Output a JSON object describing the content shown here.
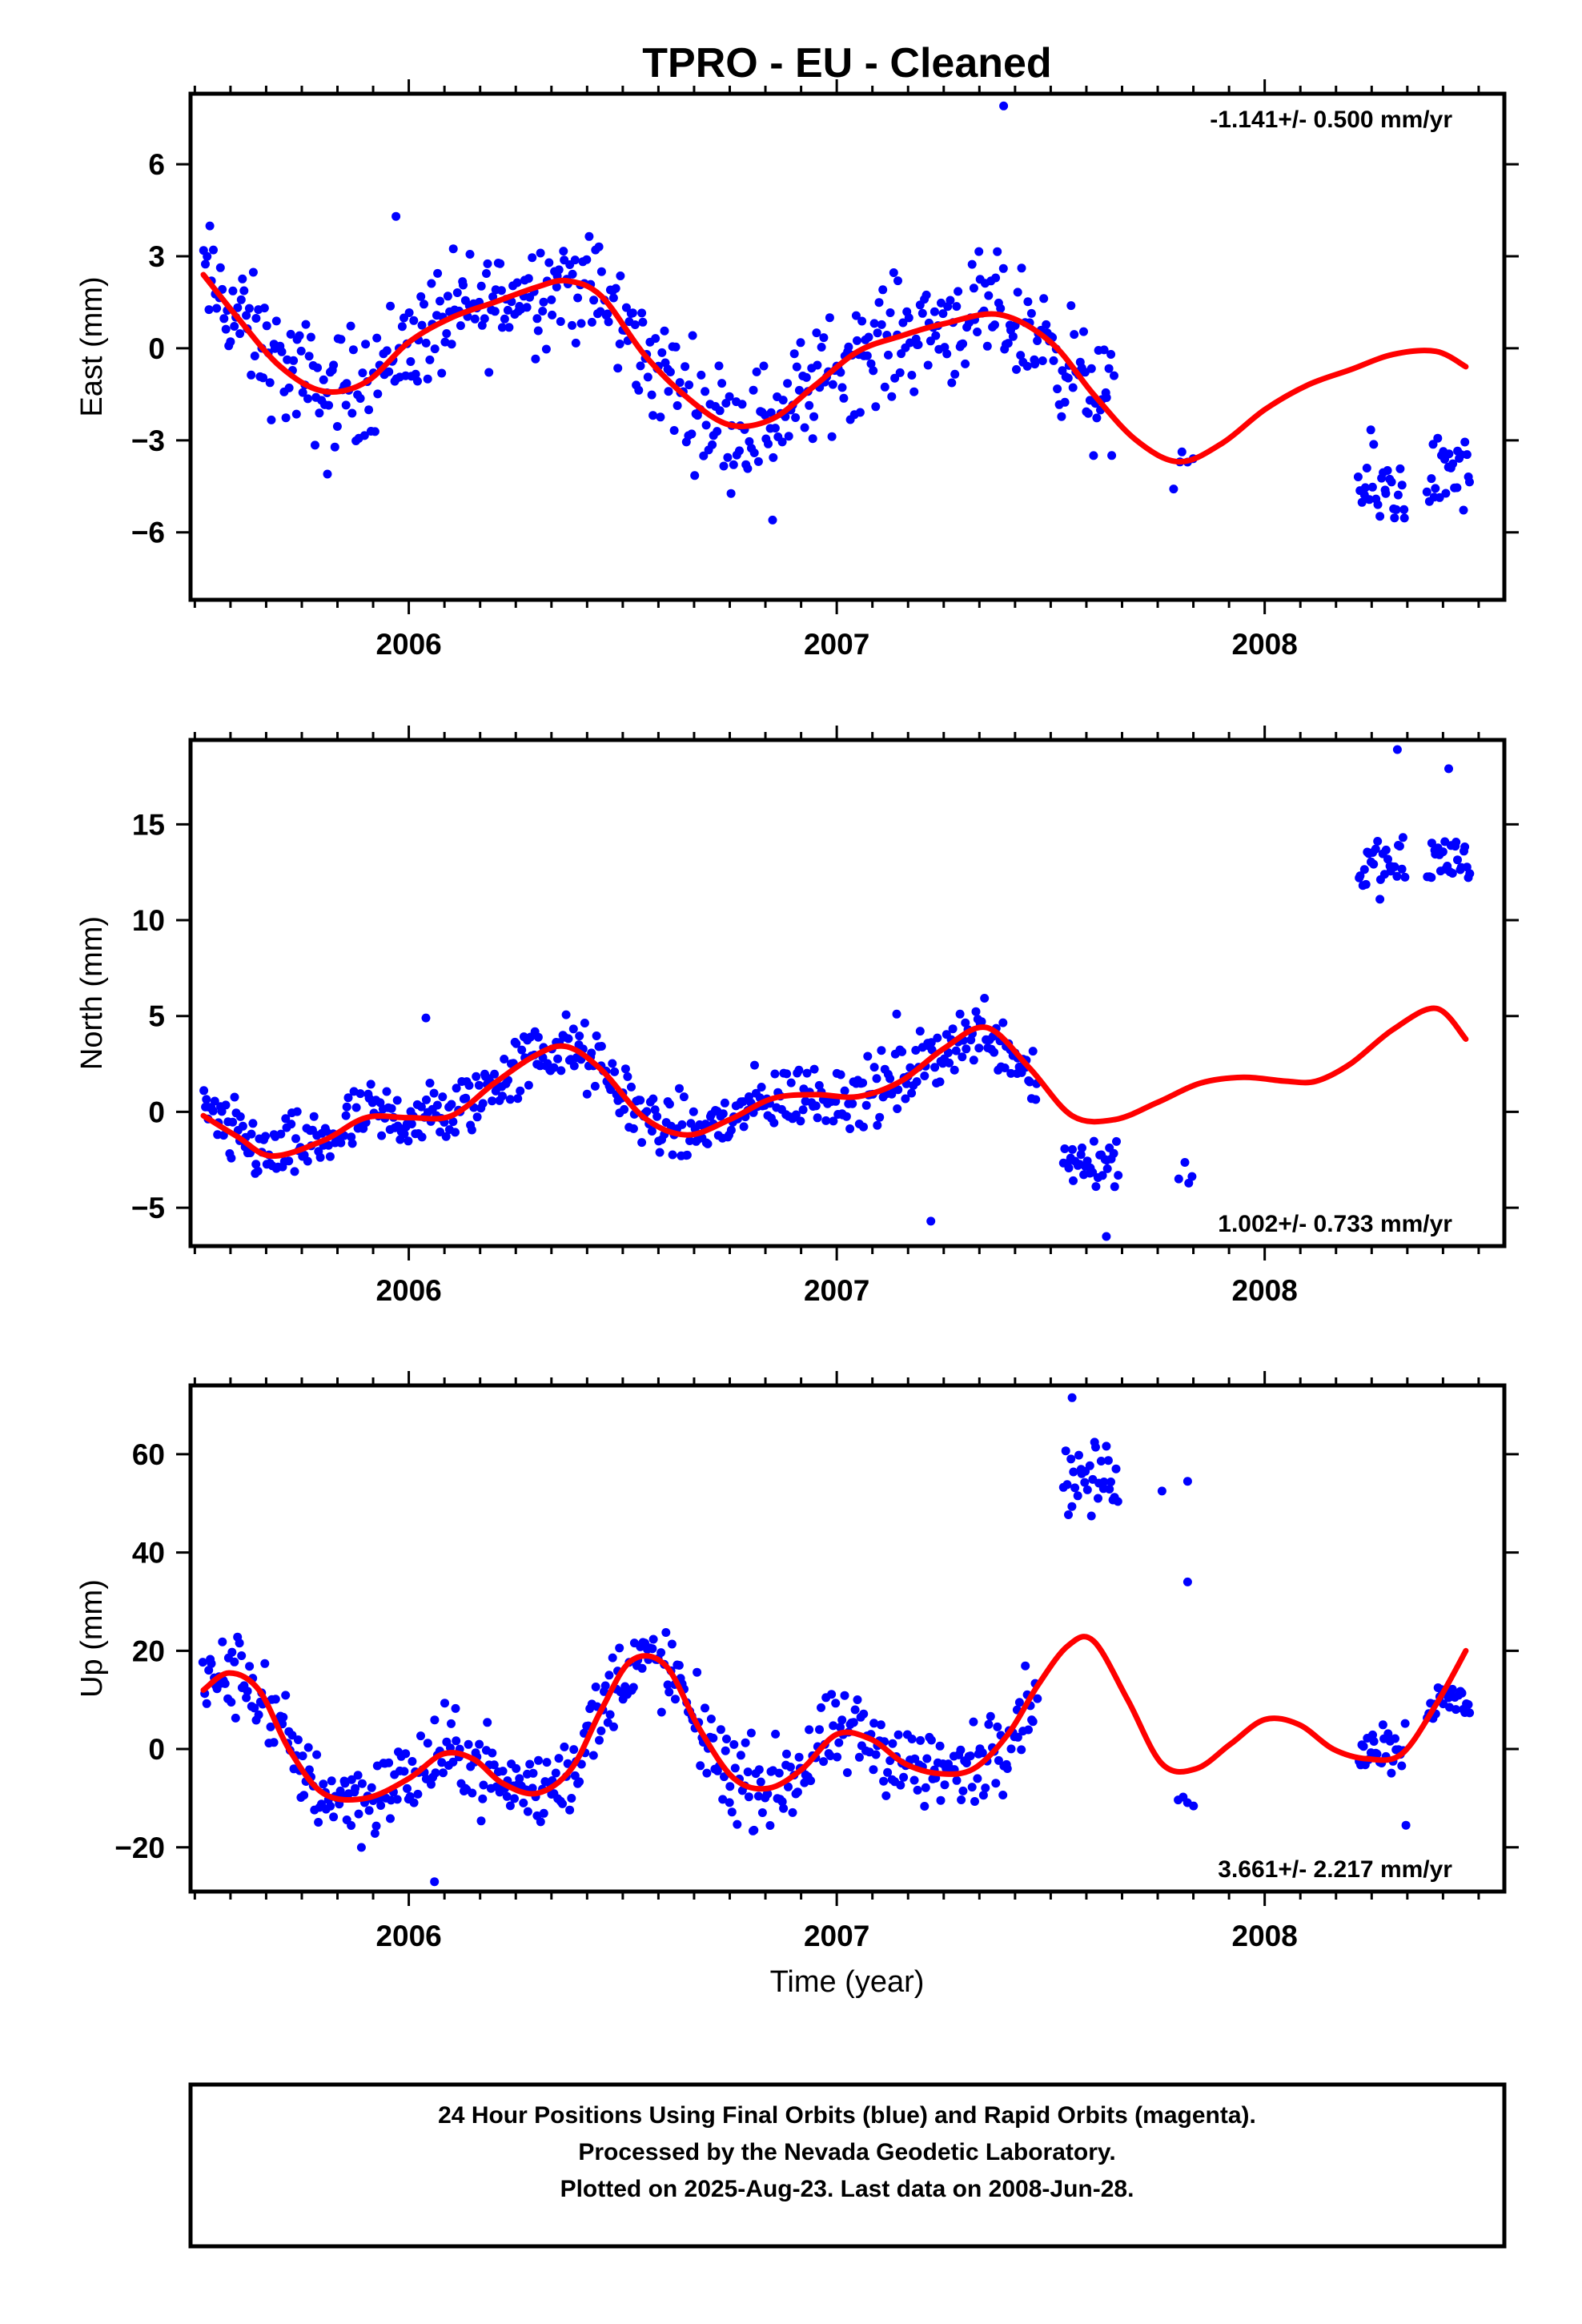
{
  "title": "TPRO  - EU - Cleaned",
  "xlabel": "Time (year)",
  "footer_lines": [
    "24 Hour Positions Using Final Orbits (blue) and Rapid Orbits (magenta).",
    "Processed by the Nevada Geodetic Laboratory.",
    "Plotted on 2025-Aug-23. Last data on 2008-Jun-28."
  ],
  "colors": {
    "points": "#0000ff",
    "fit": "#ff0000",
    "frame": "#000000"
  },
  "chart_data": [
    {
      "type": "scatter",
      "name": "east",
      "ylabel": "East (mm)",
      "rate_text": "-1.141+/- 0.500 mm/yr",
      "rate_position": "top-right",
      "xlim": [
        2005.49,
        2008.56
      ],
      "ylim": [
        -8.2,
        8.3
      ],
      "xticks": [
        2006,
        2007,
        2008
      ],
      "xtick_labels": [
        "2006",
        "2007",
        "2008"
      ],
      "yticks": [
        -6,
        -3,
        0,
        3,
        6
      ],
      "ytick_labels": [
        "−6",
        "−3",
        "0",
        "3",
        "6"
      ],
      "fit_curve": {
        "x": [
          2005.52,
          2005.6,
          2005.7,
          2005.8,
          2005.9,
          2006.0,
          2006.1,
          2006.2,
          2006.3,
          2006.37,
          2006.45,
          2006.55,
          2006.65,
          2006.75,
          2006.85,
          2006.95,
          2007.05,
          2007.15,
          2007.25,
          2007.38,
          2007.5,
          2007.6,
          2007.7,
          2007.8,
          2007.9,
          2008.0,
          2008.1,
          2008.2,
          2008.3,
          2008.4,
          2008.47
        ],
        "y": [
          2.4,
          1.0,
          -0.6,
          -1.4,
          -1.1,
          0.2,
          1.0,
          1.5,
          2.0,
          2.2,
          1.7,
          -0.2,
          -1.6,
          -2.5,
          -2.3,
          -1.2,
          -0.1,
          0.4,
          0.8,
          1.1,
          0.2,
          -1.5,
          -3.0,
          -3.7,
          -3.1,
          -2.0,
          -1.2,
          -0.7,
          -0.2,
          -0.1,
          -0.6
        ]
      },
      "points_segments": [
        {
          "x_start": 2005.52,
          "x_end": 2007.65,
          "step": 0.004,
          "amp": 1.6
        },
        {
          "x_start": 2007.79,
          "x_end": 2007.83,
          "step": 0.01,
          "amp": 1.1
        },
        {
          "x_start": 2008.22,
          "x_end": 2008.33,
          "step": 0.004,
          "amp": 1.3,
          "offset": -4.6
        },
        {
          "x_start": 2008.38,
          "x_end": 2008.48,
          "step": 0.004,
          "amp": 1.1,
          "offset": -4.1
        }
      ],
      "outliers": [
        {
          "x": 2007.39,
          "y": 7.9
        },
        {
          "x": 2005.97,
          "y": 4.3
        },
        {
          "x": 2006.85,
          "y": -5.6
        },
        {
          "x": 2005.81,
          "y": -4.1
        }
      ]
    },
    {
      "type": "scatter",
      "name": "north",
      "ylabel": "North (mm)",
      "rate_text": "1.002+/- 0.733 mm/yr",
      "rate_position": "bottom-right",
      "xlim": [
        2005.49,
        2008.56
      ],
      "ylim": [
        -7.0,
        19.4
      ],
      "xticks": [
        2006,
        2007,
        2008
      ],
      "xtick_labels": [
        "2006",
        "2007",
        "2008"
      ],
      "yticks": [
        -5,
        0,
        5,
        10,
        15
      ],
      "ytick_labels": [
        "−5",
        "0",
        "5",
        "10",
        "15"
      ],
      "fit_curve": {
        "x": [
          2005.52,
          2005.6,
          2005.68,
          2005.8,
          2005.9,
          2006.0,
          2006.1,
          2006.2,
          2006.3,
          2006.37,
          2006.45,
          2006.55,
          2006.65,
          2006.75,
          2006.85,
          2006.95,
          2007.05,
          2007.15,
          2007.25,
          2007.35,
          2007.45,
          2007.55,
          2007.65,
          2007.75,
          2007.85,
          2007.95,
          2008.05,
          2008.12,
          2008.2,
          2008.3,
          2008.4,
          2008.47
        ],
        "y": [
          -0.2,
          -1.3,
          -2.3,
          -1.5,
          -0.3,
          -0.3,
          -0.2,
          1.5,
          3.0,
          3.4,
          2.2,
          -0.3,
          -1.2,
          -0.4,
          0.7,
          0.9,
          0.8,
          1.6,
          3.3,
          4.4,
          2.3,
          -0.2,
          -0.4,
          0.5,
          1.5,
          1.8,
          1.6,
          1.6,
          2.5,
          4.3,
          5.4,
          3.8
        ]
      },
      "points_segments": [
        {
          "x_start": 2005.52,
          "x_end": 2007.47,
          "step": 0.004,
          "amp": 1.5
        },
        {
          "x_start": 2007.53,
          "x_end": 2007.66,
          "step": 0.004,
          "amp": 1.4,
          "offset": -2.6
        },
        {
          "x_start": 2007.8,
          "x_end": 2007.83,
          "step": 0.01,
          "amp": 0.8,
          "offset": -3.0
        },
        {
          "x_start": 2008.22,
          "x_end": 2008.33,
          "step": 0.004,
          "amp": 1.3,
          "offset": 12.7
        },
        {
          "x_start": 2008.38,
          "x_end": 2008.48,
          "step": 0.004,
          "amp": 1.4,
          "offset": 13.2
        }
      ],
      "outliers": [
        {
          "x": 2008.31,
          "y": 18.9
        },
        {
          "x": 2008.43,
          "y": 17.9
        },
        {
          "x": 2007.22,
          "y": -5.7
        },
        {
          "x": 2007.63,
          "y": -6.5
        },
        {
          "x": 2006.04,
          "y": 4.9
        },
        {
          "x": 2007.14,
          "y": 5.1
        }
      ]
    },
    {
      "type": "scatter",
      "name": "up",
      "ylabel": "Up (mm)",
      "rate_text": "3.661+/- 2.217 mm/yr",
      "rate_position": "bottom-right",
      "xlim": [
        2005.49,
        2008.56
      ],
      "ylim": [
        -29,
        74
      ],
      "xticks": [
        2006,
        2007,
        2008
      ],
      "xtick_labels": [
        "2006",
        "2007",
        "2008"
      ],
      "yticks": [
        -20,
        0,
        20,
        40,
        60
      ],
      "ytick_labels": [
        "−20",
        "0",
        "20",
        "40",
        "60"
      ],
      "fit_curve": {
        "x": [
          2005.52,
          2005.58,
          2005.65,
          2005.72,
          2005.8,
          2005.9,
          2006.0,
          2006.08,
          2006.15,
          2006.22,
          2006.3,
          2006.38,
          2006.45,
          2006.52,
          2006.6,
          2006.68,
          2006.76,
          2006.84,
          2006.92,
          2007.0,
          2007.08,
          2007.16,
          2007.24,
          2007.32,
          2007.4,
          2007.47,
          2007.54,
          2007.6,
          2007.68,
          2007.76,
          2007.84,
          2007.92,
          2008.0,
          2008.08,
          2008.16,
          2008.24,
          2008.32,
          2008.4,
          2008.47
        ],
        "y": [
          12,
          15.5,
          12,
          0,
          -9,
          -10,
          -6,
          -1,
          -2,
          -7,
          -9,
          -4,
          8,
          18,
          17,
          4,
          -6,
          -8,
          -4,
          3,
          2,
          -3,
          -5,
          -4,
          3,
          13,
          21,
          22,
          10,
          -3,
          -4,
          1,
          6,
          5,
          0,
          -2,
          -1,
          9,
          20
        ]
      },
      "points_segments": [
        {
          "x_start": 2005.52,
          "x_end": 2007.47,
          "step": 0.004,
          "amp": 7.5
        },
        {
          "x_start": 2007.53,
          "x_end": 2007.66,
          "step": 0.004,
          "amp": 6.0,
          "offset": 55.0
        },
        {
          "x_start": 2007.8,
          "x_end": 2007.83,
          "step": 0.01,
          "amp": 1.5,
          "offset": -11.0
        },
        {
          "x_start": 2008.22,
          "x_end": 2008.33,
          "step": 0.004,
          "amp": 5.0,
          "offset": 1.0
        },
        {
          "x_start": 2008.38,
          "x_end": 2008.48,
          "step": 0.004,
          "amp": 4.0,
          "offset": 10.0
        }
      ],
      "outliers": [
        {
          "x": 2007.55,
          "y": 71.5
        },
        {
          "x": 2007.82,
          "y": 54.5
        },
        {
          "x": 2007.82,
          "y": 34.0
        },
        {
          "x": 2007.76,
          "y": 52.5
        },
        {
          "x": 2006.06,
          "y": -27.0
        },
        {
          "x": 2008.33,
          "y": -15.5
        }
      ]
    }
  ]
}
